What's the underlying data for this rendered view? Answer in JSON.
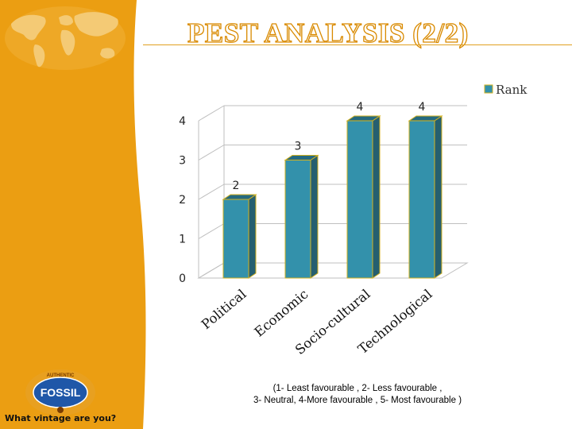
{
  "page": {
    "title": "PEST ANALYSIS (2/2)",
    "tagline": "What vintage are you?",
    "footnote_line1": "(1- Least favourable , 2- Less favourable ,",
    "footnote_line2": "3- Neutral, 4-More favourable , 5- Most favourable )"
  },
  "logo": {
    "brand": "FOSSIL",
    "ring_text": "AUTHENTIC",
    "colors": {
      "ring": "#e8a020",
      "inner": "#1f57a8",
      "text": "#ffffff"
    }
  },
  "colors": {
    "sidebar": "#eb9e12",
    "bar_front": "#3391ab",
    "bar_side": "#255f70",
    "bar_top": "#256a7f",
    "bar_outline": "#d4b21e",
    "grid": "#bfbfbf",
    "map": "#f6cf80"
  },
  "chart_data": {
    "type": "bar",
    "title": "",
    "categories": [
      "Political",
      "Economic",
      "Socio-cultural",
      "Technological"
    ],
    "series": [
      {
        "name": "Rank",
        "values": [
          2,
          3,
          4,
          4
        ]
      }
    ],
    "ylim": [
      0,
      4
    ],
    "yticks": [
      0,
      1,
      2,
      3,
      4
    ],
    "xlabel": "",
    "ylabel": "",
    "legend": "top-right",
    "grid": true,
    "data_labels": true
  }
}
